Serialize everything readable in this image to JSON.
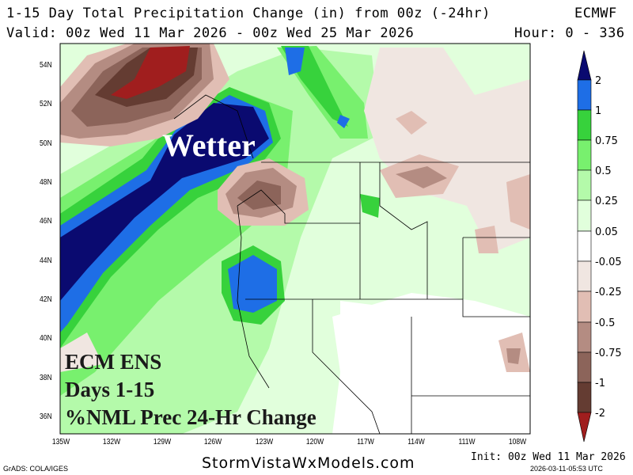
{
  "header": {
    "title": "1-15 Day Total Precipitation Change (in) from 00z (-24hr)",
    "model": "ECMWF",
    "valid": "Valid: 00z Wed 11 Mar 2026 - 00z Wed 25 Mar 2026",
    "hour": "Hour: 0 - 336"
  },
  "map": {
    "lat_labels": [
      "54N",
      "52N",
      "50N",
      "48N",
      "46N",
      "44N",
      "42N",
      "40N",
      "38N",
      "36N"
    ],
    "lon_labels": [
      "135W",
      "132W",
      "129W",
      "126W",
      "123W",
      "120W",
      "117W",
      "114W",
      "111W",
      "108W"
    ],
    "annotation": "Wetter",
    "overlay_lines": [
      "ECM ENS",
      "Days 1-15",
      "%NML Prec 24-Hr Change"
    ]
  },
  "colorbar": {
    "labels": [
      "2",
      "1",
      "0.75",
      "0.5",
      "0.25",
      "0.05",
      "-0.05",
      "-0.25",
      "-0.5",
      "-0.75",
      "-1",
      "-2"
    ],
    "colors": [
      "#0a0a70",
      "#1e6ee6",
      "#37d23c",
      "#78f06e",
      "#b4faaa",
      "#e1ffdc",
      "#ffffff",
      "#f0e6e1",
      "#e1beb4",
      "#b48c82",
      "#8c645a",
      "#643c32",
      "#a01e1e"
    ]
  },
  "footer": {
    "grads": "GrADS: COLA/IGES",
    "site": "StormVistaWxModels.com",
    "init": "Init: 00z Wed 11 Mar 2026",
    "timestamp": "2026-03-11-05:53 UTC"
  }
}
